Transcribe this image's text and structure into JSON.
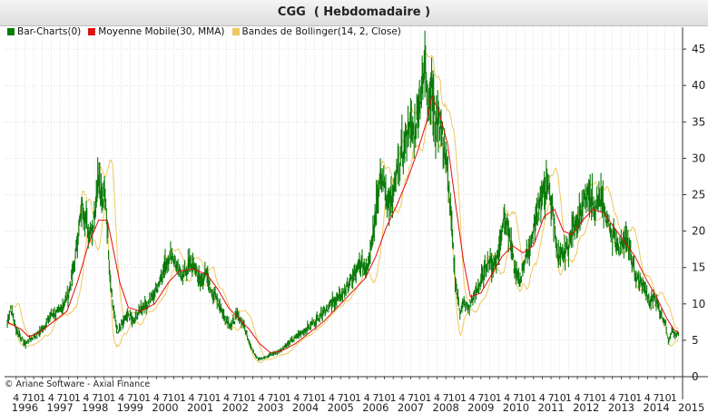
{
  "title": "CGG  ( Hebdomadaire )",
  "copyright": "© Ariane Software - Axial Finance",
  "colors": {
    "price": "#0a7a0a",
    "ma": "#e01010",
    "bands": "#f0c860",
    "grid": "#cccccc"
  },
  "chart_data": {
    "type": "bar",
    "legend": [
      {
        "name": "Bar-Charts(0)",
        "color": "#0a7a0a"
      },
      {
        "name": "Moyenne Mobile(30, MMA)",
        "color": "#e01010"
      },
      {
        "name": "Bandes de Bollinger(14, 2, Close)",
        "color": "#f0c860"
      }
    ],
    "ylim": [
      0,
      48
    ],
    "y_ticks": [
      0,
      5,
      10,
      15,
      20,
      25,
      30,
      35,
      40,
      45
    ],
    "years": [
      "1996",
      "1997",
      "1998",
      "1999",
      "2000",
      "2001",
      "2002",
      "2003",
      "2004",
      "2005",
      "2006",
      "2007",
      "2008",
      "2009",
      "2010",
      "2011",
      "2012",
      "2013",
      "2014",
      "2015"
    ],
    "month_ticks": [
      "4",
      "7",
      "10",
      "1",
      "4",
      "7",
      "10",
      "1",
      "4",
      "7",
      "10",
      "1",
      "4",
      "7",
      "10",
      "1",
      "4",
      "7",
      "10",
      "1",
      "4",
      "7",
      "10",
      "1",
      "4",
      "7",
      "10",
      "1",
      "4",
      "7",
      "10",
      "1",
      "4",
      "7",
      "10",
      "1",
      "4",
      "7",
      "10",
      "1",
      "4",
      "7",
      "10",
      "1",
      "4",
      "7",
      "10",
      "1",
      "4",
      "7",
      "10",
      "1",
      "4",
      "7",
      "10",
      "1",
      "4",
      "7",
      "10",
      "1",
      "4",
      "7",
      "10",
      "1",
      "4",
      "7",
      "10",
      "1",
      "4",
      "7",
      "10",
      "1",
      "4",
      "7",
      "10",
      "1"
    ],
    "price_path": [
      [
        1996.0,
        7.5
      ],
      [
        1996.1,
        9.5
      ],
      [
        1996.25,
        6.5
      ],
      [
        1996.5,
        4.5
      ],
      [
        1996.75,
        5.5
      ],
      [
        1997.0,
        6.5
      ],
      [
        1997.25,
        8.5
      ],
      [
        1997.5,
        9.0
      ],
      [
        1997.75,
        11.5
      ],
      [
        1997.9,
        15.0
      ],
      [
        1998.0,
        19.0
      ],
      [
        1998.15,
        24.0
      ],
      [
        1998.3,
        20.0
      ],
      [
        1998.45,
        21.0
      ],
      [
        1998.6,
        28.0
      ],
      [
        1998.7,
        24.0
      ],
      [
        1998.8,
        25.0
      ],
      [
        1998.9,
        16.0
      ],
      [
        1999.0,
        10.0
      ],
      [
        1999.15,
        6.0
      ],
      [
        1999.3,
        7.5
      ],
      [
        1999.45,
        8.5
      ],
      [
        1999.6,
        7.5
      ],
      [
        1999.8,
        9.5
      ],
      [
        2000.0,
        10.0
      ],
      [
        2000.2,
        11.5
      ],
      [
        2000.4,
        14.0
      ],
      [
        2000.55,
        16.0
      ],
      [
        2000.7,
        17.0
      ],
      [
        2000.85,
        14.5
      ],
      [
        2001.0,
        14.0
      ],
      [
        2001.2,
        15.5
      ],
      [
        2001.35,
        15.0
      ],
      [
        2001.5,
        13.0
      ],
      [
        2001.65,
        14.0
      ],
      [
        2001.8,
        12.0
      ],
      [
        2002.0,
        10.5
      ],
      [
        2002.2,
        8.0
      ],
      [
        2002.4,
        7.0
      ],
      [
        2002.55,
        8.5
      ],
      [
        2002.7,
        7.5
      ],
      [
        2002.85,
        5.5
      ],
      [
        2003.0,
        3.5
      ],
      [
        2003.15,
        2.5
      ],
      [
        2003.3,
        2.5
      ],
      [
        2003.5,
        3.0
      ],
      [
        2003.75,
        3.5
      ],
      [
        2004.0,
        4.5
      ],
      [
        2004.25,
        5.5
      ],
      [
        2004.5,
        6.5
      ],
      [
        2004.75,
        7.5
      ],
      [
        2005.0,
        9.0
      ],
      [
        2005.25,
        10.0
      ],
      [
        2005.5,
        11.0
      ],
      [
        2005.7,
        12.5
      ],
      [
        2005.9,
        14.0
      ],
      [
        2006.1,
        15.5
      ],
      [
        2006.25,
        15.0
      ],
      [
        2006.4,
        19.0
      ],
      [
        2006.55,
        25.0
      ],
      [
        2006.7,
        27.5
      ],
      [
        2006.85,
        24.0
      ],
      [
        2007.0,
        24.5
      ],
      [
        2007.15,
        29.0
      ],
      [
        2007.3,
        31.0
      ],
      [
        2007.45,
        35.0
      ],
      [
        2007.6,
        33.0
      ],
      [
        2007.75,
        38.0
      ],
      [
        2007.85,
        40.0
      ],
      [
        2007.92,
        44.0
      ],
      [
        2008.0,
        37.0
      ],
      [
        2008.1,
        40.0
      ],
      [
        2008.2,
        34.0
      ],
      [
        2008.3,
        36.0
      ],
      [
        2008.4,
        33.0
      ],
      [
        2008.5,
        30.0
      ],
      [
        2008.6,
        25.0
      ],
      [
        2008.7,
        18.0
      ],
      [
        2008.8,
        12.0
      ],
      [
        2008.9,
        9.0
      ],
      [
        2009.0,
        10.0
      ],
      [
        2009.15,
        9.5
      ],
      [
        2009.3,
        11.0
      ],
      [
        2009.5,
        13.0
      ],
      [
        2009.7,
        16.0
      ],
      [
        2009.85,
        15.5
      ],
      [
        2010.0,
        17.0
      ],
      [
        2010.15,
        22.0
      ],
      [
        2010.3,
        20.0
      ],
      [
        2010.45,
        15.0
      ],
      [
        2010.6,
        13.0
      ],
      [
        2010.75,
        16.0
      ],
      [
        2010.9,
        18.0
      ],
      [
        2011.0,
        20.0
      ],
      [
        2011.15,
        24.0
      ],
      [
        2011.3,
        25.5
      ],
      [
        2011.45,
        26.0
      ],
      [
        2011.6,
        21.0
      ],
      [
        2011.7,
        16.0
      ],
      [
        2011.85,
        17.0
      ],
      [
        2012.0,
        18.0
      ],
      [
        2012.15,
        21.0
      ],
      [
        2012.3,
        22.0
      ],
      [
        2012.45,
        24.0
      ],
      [
        2012.6,
        25.0
      ],
      [
        2012.75,
        23.0
      ],
      [
        2012.9,
        24.5
      ],
      [
        2013.0,
        23.0
      ],
      [
        2013.15,
        21.0
      ],
      [
        2013.3,
        19.0
      ],
      [
        2013.45,
        18.0
      ],
      [
        2013.6,
        19.5
      ],
      [
        2013.75,
        17.0
      ],
      [
        2013.9,
        14.0
      ],
      [
        2014.0,
        13.0
      ],
      [
        2014.15,
        12.5
      ],
      [
        2014.3,
        10.0
      ],
      [
        2014.45,
        11.0
      ],
      [
        2014.6,
        9.0
      ],
      [
        2014.75,
        7.5
      ],
      [
        2014.85,
        5.0
      ],
      [
        2014.95,
        6.5
      ],
      [
        2015.05,
        5.5
      ],
      [
        2015.15,
        6.0
      ]
    ],
    "moving_average": [
      [
        1996.0,
        7.5
      ],
      [
        1996.4,
        6.5
      ],
      [
        1996.6,
        5.5
      ],
      [
        1996.9,
        6.0
      ],
      [
        1997.3,
        7.5
      ],
      [
        1997.7,
        9.0
      ],
      [
        1998.0,
        13.0
      ],
      [
        1998.3,
        18.0
      ],
      [
        1998.6,
        21.5
      ],
      [
        1998.85,
        21.5
      ],
      [
        1999.0,
        18.0
      ],
      [
        1999.2,
        13.0
      ],
      [
        1999.45,
        9.5
      ],
      [
        1999.8,
        9.0
      ],
      [
        2000.2,
        10.0
      ],
      [
        2000.6,
        13.0
      ],
      [
        2000.9,
        14.5
      ],
      [
        2001.3,
        14.8
      ],
      [
        2001.7,
        14.0
      ],
      [
        2002.0,
        12.0
      ],
      [
        2002.3,
        9.5
      ],
      [
        2002.6,
        8.0
      ],
      [
        2002.9,
        6.5
      ],
      [
        2003.2,
        4.5
      ],
      [
        2003.5,
        3.3
      ],
      [
        2003.8,
        3.5
      ],
      [
        2004.2,
        4.5
      ],
      [
        2004.6,
        6.0
      ],
      [
        2005.0,
        7.5
      ],
      [
        2005.4,
        9.5
      ],
      [
        2005.8,
        11.5
      ],
      [
        2006.2,
        13.5
      ],
      [
        2006.5,
        16.5
      ],
      [
        2006.8,
        20.5
      ],
      [
        2007.1,
        23.5
      ],
      [
        2007.4,
        27.0
      ],
      [
        2007.7,
        31.0
      ],
      [
        2007.95,
        35.0
      ],
      [
        2008.1,
        38.5
      ],
      [
        2008.3,
        36.5
      ],
      [
        2008.55,
        32.0
      ],
      [
        2008.8,
        23.0
      ],
      [
        2009.0,
        16.0
      ],
      [
        2009.2,
        11.0
      ],
      [
        2009.5,
        11.5
      ],
      [
        2009.8,
        14.0
      ],
      [
        2010.1,
        16.5
      ],
      [
        2010.4,
        18.0
      ],
      [
        2010.7,
        17.0
      ],
      [
        2011.0,
        18.0
      ],
      [
        2011.3,
        22.0
      ],
      [
        2011.6,
        23.0
      ],
      [
        2011.85,
        20.0
      ],
      [
        2012.1,
        19.5
      ],
      [
        2012.4,
        21.5
      ],
      [
        2012.7,
        23.0
      ],
      [
        2013.0,
        22.5
      ],
      [
        2013.3,
        20.5
      ],
      [
        2013.6,
        18.5
      ],
      [
        2013.9,
        16.5
      ],
      [
        2014.2,
        13.5
      ],
      [
        2014.5,
        11.0
      ],
      [
        2014.8,
        8.0
      ],
      [
        2015.0,
        6.5
      ],
      [
        2015.15,
        6.0
      ]
    ]
  }
}
